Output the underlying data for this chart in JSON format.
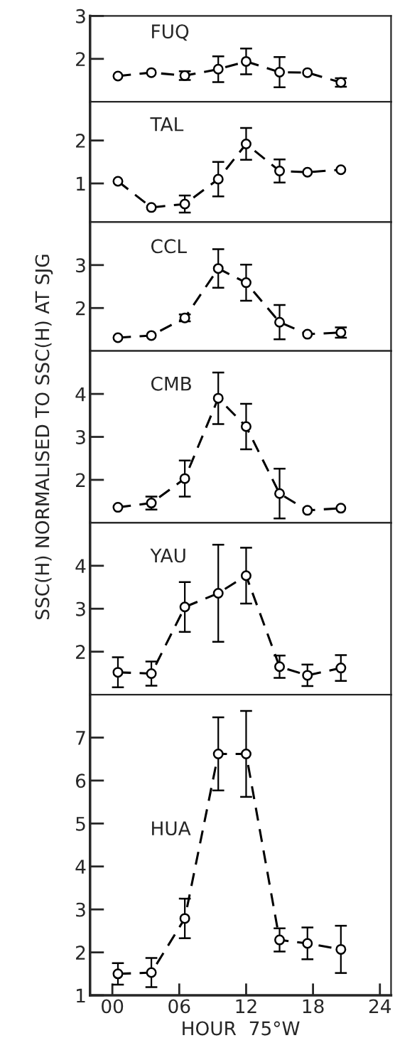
{
  "chart_data": [
    {
      "type": "line",
      "title": "FUQ",
      "x": [
        0.5,
        3.5,
        6.5,
        9.5,
        12,
        15,
        17.5,
        20.5
      ],
      "xlim": [
        -2,
        25
      ],
      "ylim": [
        1,
        3
      ],
      "yticks": [
        2,
        3
      ],
      "tick_labels": "y",
      "marker": "circle",
      "line_style": "dashed",
      "grid": false,
      "legend": false,
      "series": [
        {
          "color": "#000000",
          "values": [
            1.6,
            1.68,
            1.61,
            1.76,
            1.94,
            1.69,
            1.68,
            1.45
          ],
          "errors": [
            null,
            null,
            0.1,
            0.3,
            0.3,
            0.35,
            null,
            0.1
          ]
        }
      ]
    },
    {
      "type": "line",
      "title": "TAL",
      "x": [
        0.5,
        3.5,
        6.5,
        9.5,
        12,
        15,
        17.5,
        20.5
      ],
      "xlim": [
        -2,
        25
      ],
      "ylim": [
        0.1,
        2.9
      ],
      "yticks": [
        1,
        2
      ],
      "tick_labels": "y",
      "marker": "circle",
      "line_style": "dashed",
      "grid": false,
      "legend": false,
      "series": [
        {
          "color": "#000000",
          "values": [
            1.05,
            0.44,
            0.52,
            1.1,
            1.92,
            1.29,
            1.26,
            1.32
          ],
          "errors": [
            null,
            null,
            0.2,
            0.4,
            0.37,
            0.27,
            null,
            null
          ]
        }
      ]
    },
    {
      "type": "line",
      "title": "CCL",
      "x": [
        0.5,
        3.5,
        6.5,
        9.5,
        12,
        15,
        17.5,
        20.5
      ],
      "xlim": [
        -2,
        25
      ],
      "ylim": [
        1,
        4
      ],
      "yticks": [
        2,
        3
      ],
      "tick_labels": "y",
      "marker": "circle",
      "line_style": "dashed",
      "grid": false,
      "legend": false,
      "series": [
        {
          "color": "#000000",
          "values": [
            1.31,
            1.36,
            1.77,
            2.92,
            2.59,
            1.67,
            1.39,
            1.43
          ],
          "errors": [
            null,
            null,
            0.08,
            0.45,
            0.42,
            0.4,
            null,
            0.12
          ]
        }
      ]
    },
    {
      "type": "line",
      "title": "CMB",
      "ylabel": "SSC(H) NORMALISED TO SSC(H) AT SJG",
      "x": [
        0.5,
        3.5,
        6.5,
        9.5,
        12,
        15,
        17.5,
        20.5
      ],
      "xlim": [
        -2,
        25
      ],
      "ylim": [
        1,
        5
      ],
      "yticks": [
        2,
        3,
        4
      ],
      "tick_labels": "y",
      "marker": "circle",
      "line_style": "dashed",
      "grid": false,
      "legend": false,
      "series": [
        {
          "color": "#000000",
          "values": [
            1.36,
            1.46,
            2.03,
            3.9,
            3.24,
            1.68,
            1.29,
            1.34
          ],
          "errors": [
            null,
            0.15,
            0.42,
            0.6,
            0.53,
            0.58,
            null,
            null
          ]
        }
      ]
    },
    {
      "type": "line",
      "title": "YAU",
      "x": [
        0.5,
        3.5,
        6.5,
        9.5,
        12,
        15,
        17.5,
        20.5
      ],
      "xlim": [
        -2,
        25
      ],
      "ylim": [
        1,
        5
      ],
      "yticks": [
        2,
        3,
        4
      ],
      "tick_labels": "y",
      "marker": "circle",
      "line_style": "dashed",
      "grid": false,
      "legend": false,
      "series": [
        {
          "color": "#000000",
          "values": [
            1.52,
            1.49,
            3.04,
            3.36,
            3.77,
            1.65,
            1.45,
            1.62
          ],
          "errors": [
            0.35,
            0.28,
            0.58,
            1.13,
            0.65,
            0.26,
            0.25,
            0.3
          ]
        }
      ]
    },
    {
      "type": "line",
      "title": "HUA",
      "xlabel": "HOUR  75°W",
      "x": [
        0.5,
        3.5,
        6.5,
        9.5,
        12,
        15,
        17.5,
        20.5
      ],
      "xlim": [
        -2,
        25
      ],
      "xticks": [
        {
          "value": 0,
          "label": "00"
        },
        {
          "value": 6,
          "label": "06"
        },
        12,
        18,
        24
      ],
      "ylim": [
        1,
        8
      ],
      "yticks": [
        1,
        2,
        3,
        4,
        5,
        6,
        7
      ],
      "marker": "circle",
      "line_style": "dashed",
      "grid": false,
      "legend": false,
      "series": [
        {
          "color": "#000000",
          "values": [
            1.5,
            1.53,
            2.79,
            6.62,
            6.62,
            2.29,
            2.21,
            2.07
          ],
          "errors": [
            0.25,
            0.34,
            0.46,
            0.85,
            1.0,
            0.27,
            0.37,
            0.55
          ]
        }
      ]
    }
  ]
}
